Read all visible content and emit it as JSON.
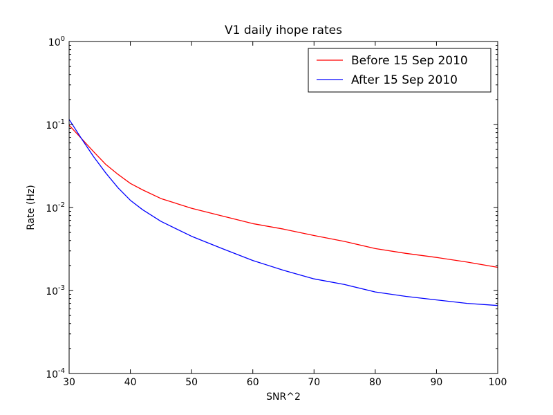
{
  "chart_data": {
    "type": "line",
    "title": "V1 daily ihope rates",
    "xlabel": "SNR^2",
    "ylabel": "Rate (Hz)",
    "xlim": [
      30,
      100
    ],
    "ylim": [
      0.0001,
      1
    ],
    "yscale": "log",
    "grid": false,
    "legend_position": "top-right",
    "x_ticks": [
      "30",
      "40",
      "50",
      "60",
      "70",
      "80",
      "90",
      "100"
    ],
    "y_ticks": [
      {
        "base": "10",
        "exp": "0"
      },
      {
        "base": "10",
        "exp": "-1"
      },
      {
        "base": "10",
        "exp": "-2"
      },
      {
        "base": "10",
        "exp": "-3"
      },
      {
        "base": "10",
        "exp": "-4"
      }
    ],
    "series": [
      {
        "name": "Before 15 Sep 2010",
        "color": "#ff0000",
        "x": [
          30,
          32,
          34,
          36,
          38,
          40,
          42,
          45,
          50,
          55,
          60,
          65,
          70,
          75,
          80,
          85,
          90,
          95,
          100
        ],
        "y": [
          0.098,
          0.068,
          0.047,
          0.033,
          0.025,
          0.0195,
          0.0163,
          0.0128,
          0.0098,
          0.0079,
          0.0064,
          0.0055,
          0.0046,
          0.0039,
          0.0032,
          0.0028,
          0.0025,
          0.0022,
          0.0019
        ]
      },
      {
        "name": "After 15 Sep 2010",
        "color": "#0000ff",
        "x": [
          30,
          32,
          34,
          36,
          38,
          40,
          42,
          45,
          50,
          55,
          60,
          65,
          70,
          75,
          80,
          85,
          90,
          95,
          100
        ],
        "y": [
          0.115,
          0.068,
          0.041,
          0.026,
          0.0172,
          0.0122,
          0.0094,
          0.0068,
          0.0045,
          0.0032,
          0.0023,
          0.00175,
          0.00138,
          0.00118,
          0.00096,
          0.00085,
          0.00077,
          0.0007,
          0.00066
        ]
      }
    ]
  }
}
